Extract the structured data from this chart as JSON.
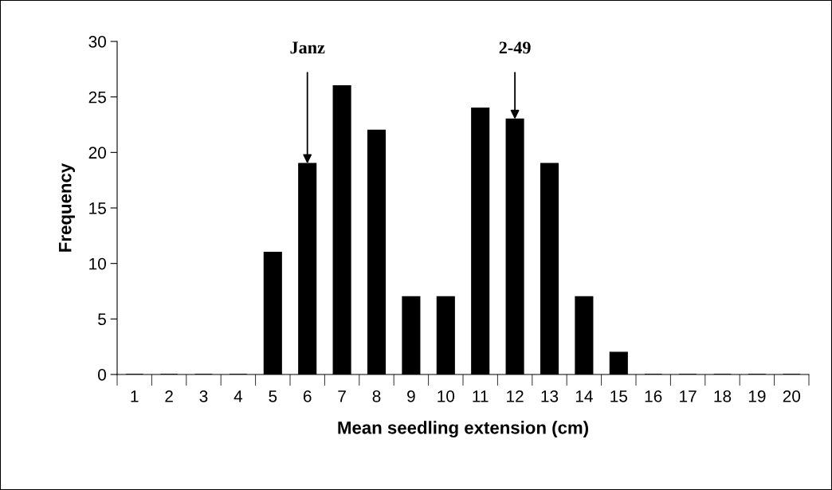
{
  "chart_data": {
    "type": "bar",
    "categories": [
      "1",
      "2",
      "3",
      "4",
      "5",
      "6",
      "7",
      "8",
      "9",
      "10",
      "11",
      "12",
      "13",
      "14",
      "15",
      "16",
      "17",
      "18",
      "19",
      "20"
    ],
    "values": [
      0,
      0,
      0,
      0,
      11,
      19,
      26,
      22,
      7,
      7,
      24,
      23,
      19,
      7,
      2,
      0,
      0,
      0,
      0,
      0
    ],
    "color": "#000000",
    "xlabel": "Mean seedling extension (cm)",
    "ylabel": "Frequency",
    "ylim": [
      0,
      30
    ],
    "yticks": [
      0,
      5,
      10,
      15,
      20,
      25,
      30
    ],
    "annotations": [
      {
        "text": "Janz",
        "x": "6",
        "y": 19
      },
      {
        "text": "2-49",
        "x": "12",
        "y": 23
      }
    ],
    "grid": false,
    "legend": false
  }
}
